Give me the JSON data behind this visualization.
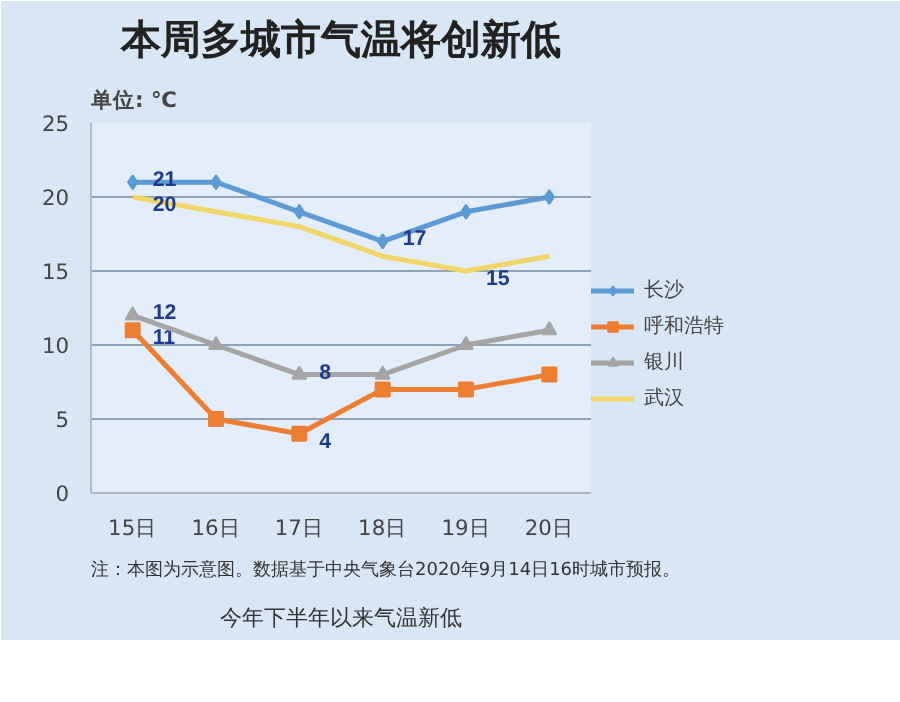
{
  "chart_data": {
    "type": "line",
    "title": "本周多城市气温将创新低",
    "ylabel": "单位: ℃",
    "categories": [
      "15日",
      "16日",
      "17日",
      "18日",
      "19日",
      "20日"
    ],
    "series": [
      {
        "name": "长沙",
        "color": "#5b9bd5",
        "marker": "diamond",
        "values": [
          21,
          21,
          19,
          17,
          19,
          20
        ],
        "value_labels": [
          "21",
          null,
          null,
          "17",
          null,
          null
        ]
      },
      {
        "name": "呼和浩特",
        "color": "#ed7d31",
        "marker": "square",
        "values": [
          11,
          5,
          4,
          7,
          7,
          8
        ],
        "value_labels": [
          "11",
          null,
          "4",
          null,
          null,
          null
        ]
      },
      {
        "name": "银川",
        "color": "#a5a5a5",
        "marker": "triangle",
        "values": [
          12,
          10,
          8,
          8,
          10,
          11
        ],
        "value_labels": [
          "12",
          null,
          "8",
          null,
          null,
          null
        ]
      },
      {
        "name": "武汉",
        "color": "#f2d568",
        "marker": "none",
        "values": [
          20,
          19,
          18,
          16,
          15,
          16
        ],
        "value_labels": [
          "20",
          null,
          null,
          null,
          "15",
          null
        ]
      }
    ],
    "ylim": [
      0,
      25
    ],
    "yticks": [
      0,
      5,
      10,
      15,
      20,
      25
    ],
    "grid": "y",
    "legend": "right",
    "annotations": [
      "今年下半年以来气温新低",
      "注：本图为示意图。数据基于中央气象台2020年9月14日16时城市预报。"
    ]
  }
}
